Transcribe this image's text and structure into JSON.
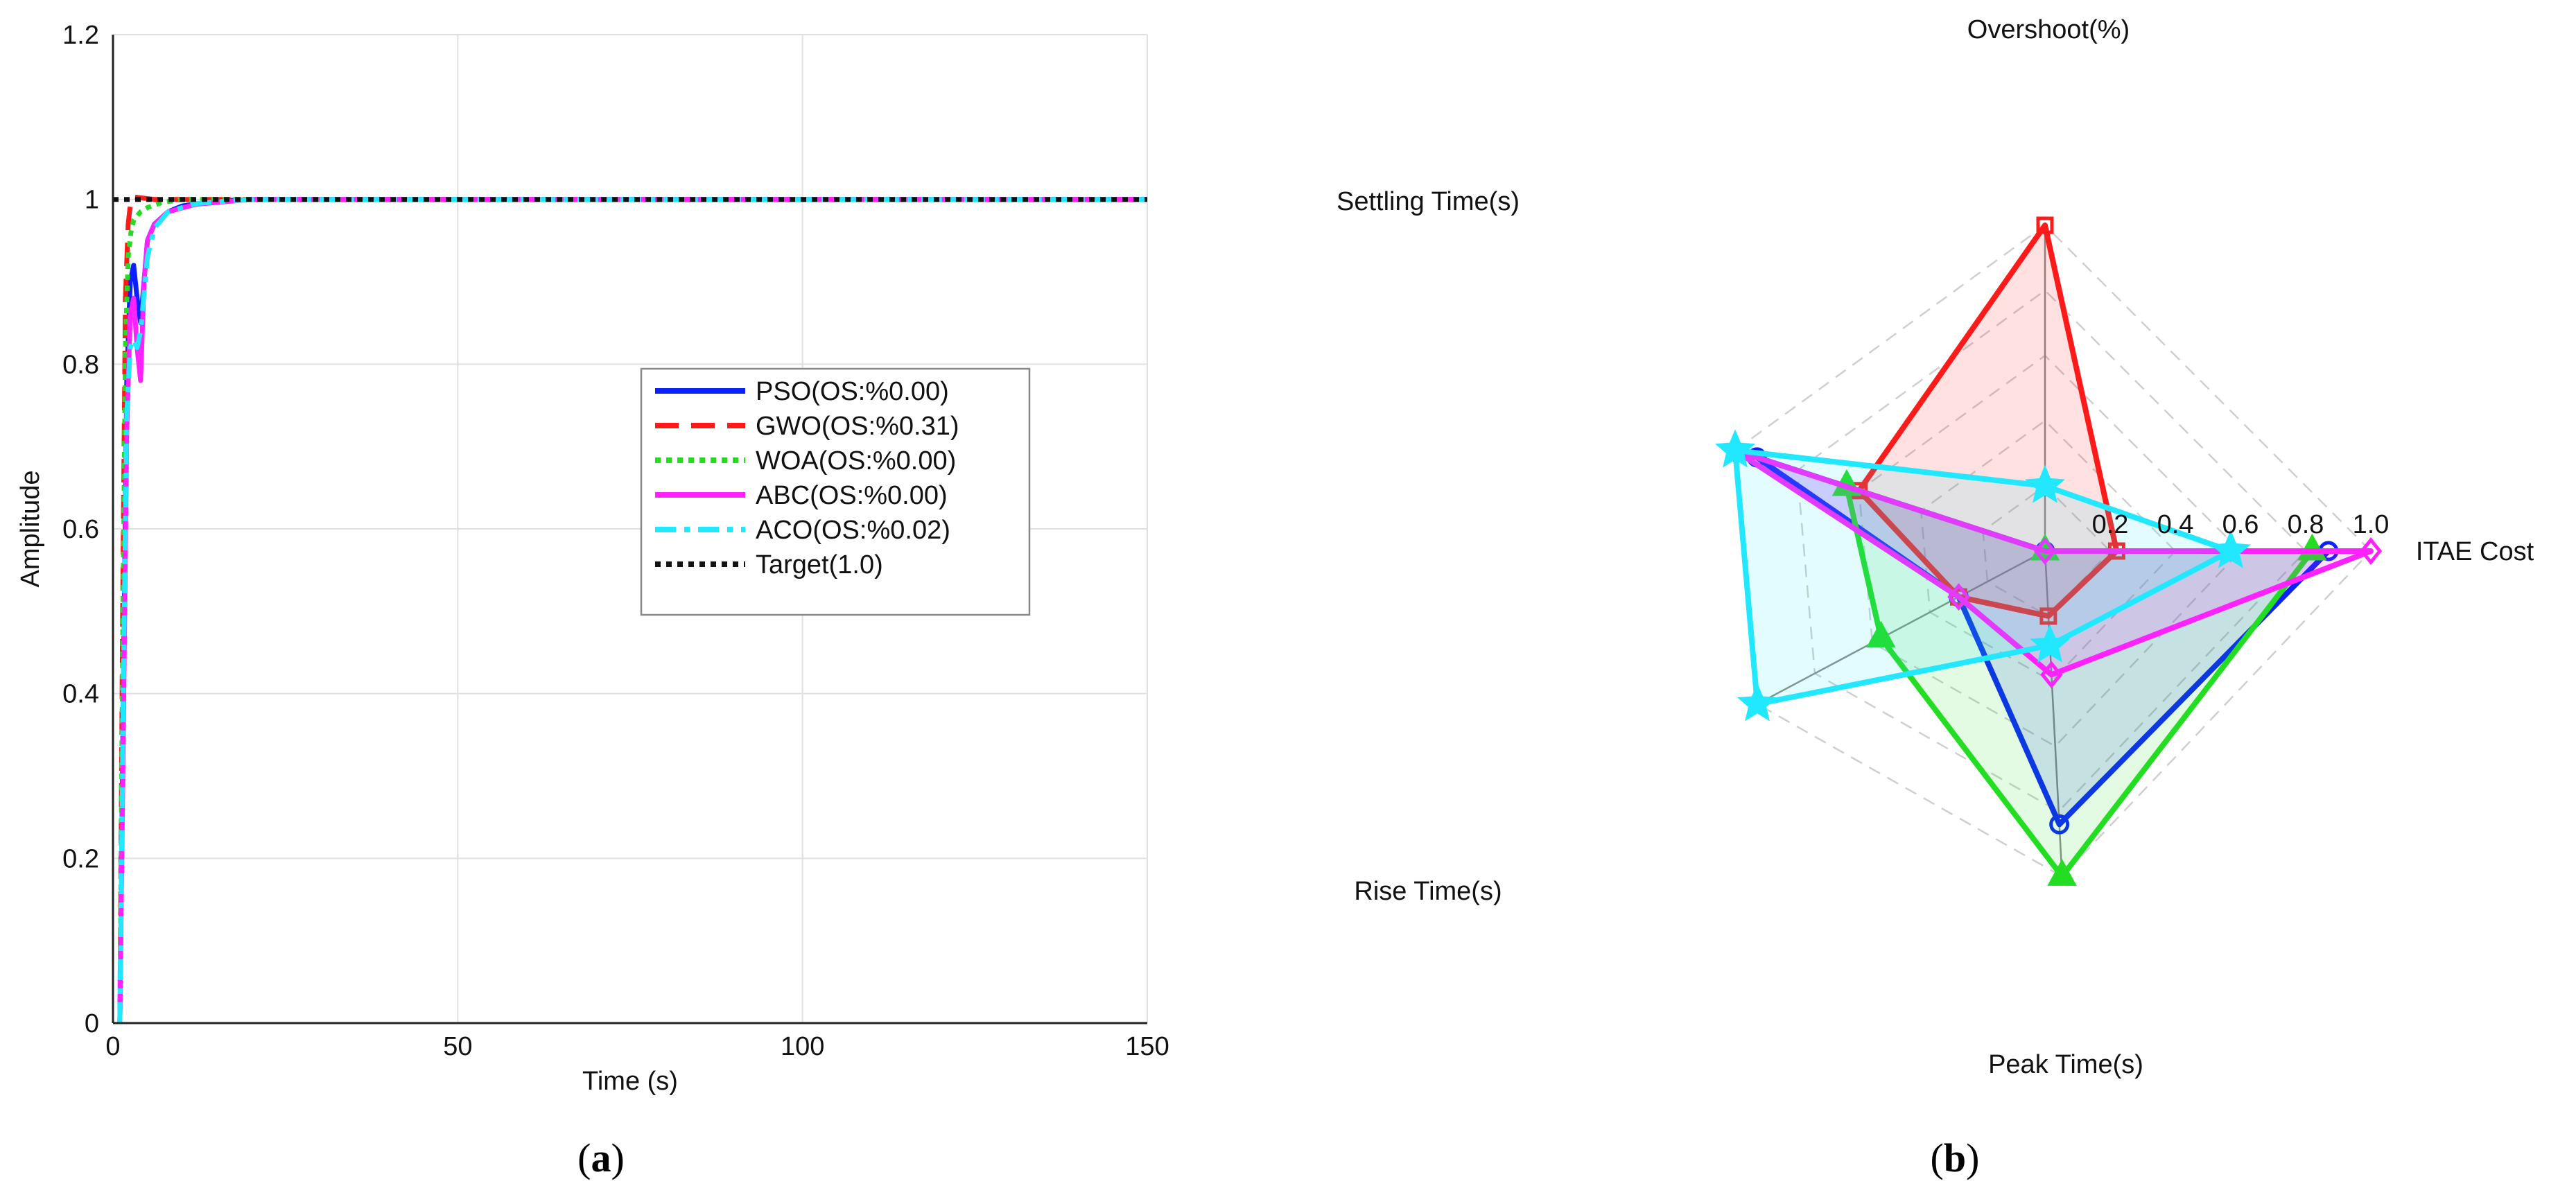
{
  "colors": {
    "PSO": "#0a20ff",
    "GWO": "#ff1a1a",
    "WOA": "#22dd22",
    "ABC": "#ff22ff",
    "ACO": "#22e8ff",
    "Target": "#111111"
  },
  "captions": {
    "a": "(a)",
    "b": "(b)",
    "a_letter": "a",
    "b_letter": "b"
  },
  "chart_data": [
    {
      "id": "a",
      "type": "line",
      "xlabel": "Time (s)",
      "ylabel": "Amplitude",
      "xlim": [
        0,
        150
      ],
      "ylim": [
        0,
        1.2
      ],
      "xticks": [
        0,
        50,
        100,
        150
      ],
      "yticks": [
        0,
        0.2,
        0.4,
        0.6,
        0.8,
        1,
        1.2
      ],
      "ytick_labels": [
        "0",
        "0.2",
        "0.4",
        "0.6",
        "0.8",
        "1",
        "1.2"
      ],
      "grid": true,
      "legend_position": "center-right",
      "series": [
        {
          "name": "PSO(OS:%0.00)",
          "style": "solid",
          "x": [
            1.0,
            1.5,
            2.0,
            2.5,
            3.0,
            3.5,
            4.0,
            5.0,
            6.0,
            8.0,
            10.0,
            15.0,
            20.0,
            150.0
          ],
          "y": [
            0,
            0.4,
            0.78,
            0.9,
            0.92,
            0.88,
            0.85,
            0.95,
            0.97,
            0.985,
            0.992,
            0.998,
            1.0,
            1.0
          ]
        },
        {
          "name": "GWO(OS:%0.31)",
          "style": "dash",
          "x": [
            1.0,
            1.4,
            1.8,
            2.2,
            2.6,
            3.0,
            4.0,
            6.0,
            10.0,
            150.0
          ],
          "y": [
            0,
            0.5,
            0.88,
            0.97,
            1.0,
            1.003,
            1.002,
            1.0,
            1.0,
            1.0
          ]
        },
        {
          "name": "WOA(OS:%0.00)",
          "style": "dot",
          "x": [
            1.0,
            1.4,
            1.8,
            2.2,
            2.6,
            3.0,
            4.0,
            5.0,
            7.0,
            10.0,
            150.0
          ],
          "y": [
            0,
            0.45,
            0.82,
            0.93,
            0.96,
            0.975,
            0.985,
            0.99,
            0.996,
            1.0,
            1.0
          ]
        },
        {
          "name": "ABC(OS:%0.00)",
          "style": "solid",
          "x": [
            1.0,
            1.5,
            2.0,
            2.5,
            3.0,
            3.5,
            4.0,
            4.5,
            5.0,
            6.0,
            8.0,
            12.0,
            20.0,
            150.0
          ],
          "y": [
            0,
            0.35,
            0.72,
            0.86,
            0.88,
            0.82,
            0.78,
            0.9,
            0.95,
            0.97,
            0.985,
            0.994,
            1.0,
            1.0
          ]
        },
        {
          "name": "ACO(OS:%0.02)",
          "style": "dashdot",
          "x": [
            1.0,
            1.5,
            2.0,
            2.5,
            3.0,
            3.5,
            4.0,
            5.0,
            6.0,
            8.0,
            12.0,
            20.0,
            150.0
          ],
          "y": [
            0,
            0.4,
            0.74,
            0.82,
            0.83,
            0.82,
            0.84,
            0.93,
            0.965,
            0.985,
            0.995,
            1.0,
            1.0
          ]
        },
        {
          "name": "Target(1.0)",
          "style": "dotted-black",
          "x": [
            0,
            150
          ],
          "y": [
            1.0,
            1.0
          ]
        }
      ]
    },
    {
      "id": "b",
      "type": "radar",
      "axes": [
        "ITAE Cost",
        "Overshoot(%)",
        "Settling Time(s)",
        "Rise Time(s)",
        "Peak Time(s)"
      ],
      "rlim": [
        0,
        1.0
      ],
      "rticks": [
        0.2,
        0.4,
        0.6,
        0.8,
        1.0
      ],
      "rtick_labels": [
        "0.2",
        "0.4",
        "0.6",
        "0.8",
        "1.0"
      ],
      "series": [
        {
          "name": "PSO",
          "marker": "circle",
          "values": [
            0.87,
            0.0,
            0.93,
            0.3,
            0.84
          ]
        },
        {
          "name": "GWO",
          "marker": "square",
          "values": [
            0.22,
            1.0,
            0.6,
            0.3,
            0.2
          ]
        },
        {
          "name": "WOA",
          "marker": "triangle",
          "values": [
            0.82,
            0.0,
            0.64,
            0.57,
            1.0
          ]
        },
        {
          "name": "ABC",
          "marker": "diamond",
          "values": [
            1.0,
            0.0,
            1.0,
            0.3,
            0.38
          ]
        },
        {
          "name": "ACO",
          "marker": "star",
          "values": [
            0.57,
            0.2,
            1.0,
            1.0,
            0.29
          ]
        }
      ]
    }
  ]
}
